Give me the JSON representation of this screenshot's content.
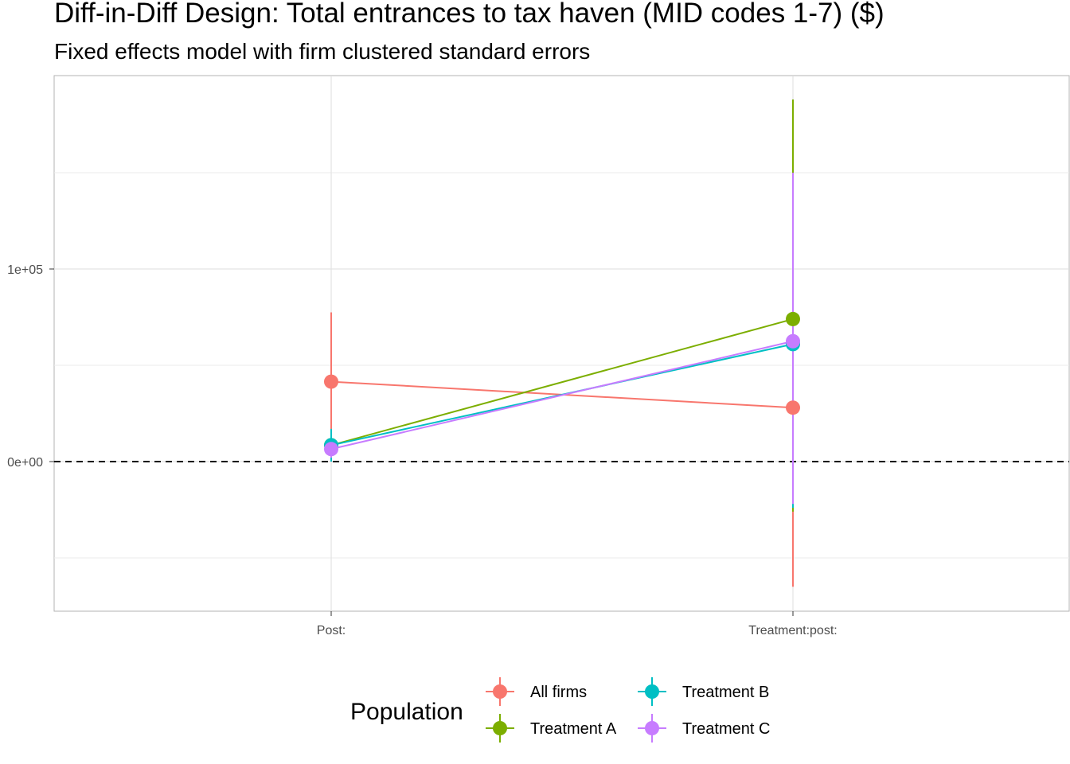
{
  "chart_data": {
    "type": "line",
    "title": "Diff-in-Diff Design: Total entrances to tax haven (MID codes 1-7)  ($)",
    "subtitle": "Fixed effects model with firm clustered standard errors",
    "categories": [
      "Post:",
      "Treatment:post:"
    ],
    "y_ticks": [
      {
        "value": 0,
        "label": "0e+00"
      },
      {
        "value": 100000,
        "label": "1e+05"
      }
    ],
    "ylim": [
      -77000,
      200000
    ],
    "grid": true,
    "reference_line": {
      "y": 0,
      "style": "dashed"
    },
    "legend": {
      "title": "Population",
      "position": "bottom"
    },
    "series": [
      {
        "name": "All firms",
        "color": "#F8766D",
        "points": [
          {
            "x": "Post:",
            "y": 41500,
            "lo": 6000,
            "hi": 77500
          },
          {
            "x": "Treatment:post:",
            "y": 28000,
            "lo": -65000,
            "hi": 60000
          }
        ]
      },
      {
        "name": "Treatment A",
        "color": "#7CAE00",
        "points": [
          {
            "x": "Post:",
            "y": 8500,
            "lo": 1000,
            "hi": 15000
          },
          {
            "x": "Treatment:post:",
            "y": 74000,
            "lo": -26000,
            "hi": 188000
          }
        ]
      },
      {
        "name": "Treatment B",
        "color": "#00BFC4",
        "points": [
          {
            "x": "Post:",
            "y": 8500,
            "lo": 0,
            "hi": 17000
          },
          {
            "x": "Treatment:post:",
            "y": 61000,
            "lo": -24000,
            "hi": 146000
          }
        ]
      },
      {
        "name": "Treatment C",
        "color": "#C77CFF",
        "points": [
          {
            "x": "Post:",
            "y": 6500,
            "lo": 2000,
            "hi": 11000
          },
          {
            "x": "Treatment:post:",
            "y": 62500,
            "lo": -22000,
            "hi": 150000
          }
        ]
      }
    ]
  }
}
